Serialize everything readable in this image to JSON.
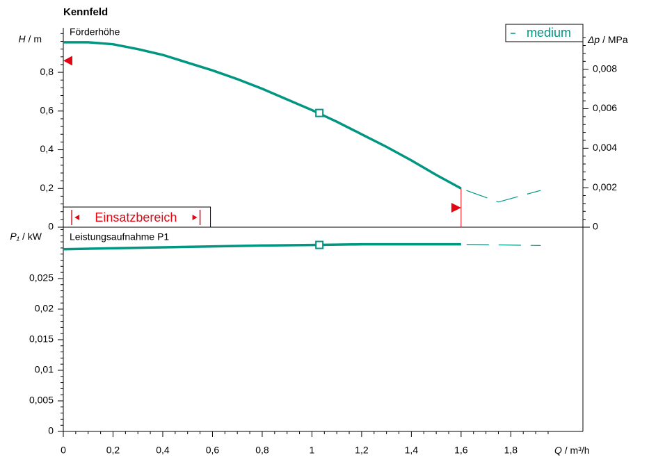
{
  "chart_data": [
    {
      "type": "line",
      "title": "Kennfeld",
      "label": "Förderhöhe",
      "y_label": {
        "symbol": "H",
        "unit": "/ m"
      },
      "y2_label": {
        "symbol": "Δp",
        "unit": "/ MPa"
      },
      "xlim": [
        0,
        2.09
      ],
      "ylim": [
        0,
        1.03
      ],
      "yticks": [
        0,
        {
          "value": 0.2,
          "label": "0,2"
        },
        {
          "value": 0.4,
          "label": "0,4"
        },
        {
          "value": 0.6,
          "label": "0,6"
        },
        {
          "value": 0.8,
          "label": "0,8"
        }
      ],
      "y2lim": [
        0,
        0.0101
      ],
      "y2ticks": [
        0,
        {
          "value": 0.002,
          "label": "0,002"
        },
        {
          "value": 0.004,
          "label": "0,004"
        },
        {
          "value": 0.006,
          "label": "0,006"
        },
        {
          "value": 0.008,
          "label": "0,008"
        }
      ],
      "legend": "upper right",
      "series": [
        {
          "name": "medium",
          "color": "#009682",
          "x": [
            0,
            0.1,
            0.2,
            0.3,
            0.4,
            0.5,
            0.6,
            0.7,
            0.8,
            0.9,
            1.0,
            1.1,
            1.2,
            1.3,
            1.4,
            1.5,
            1.6
          ],
          "values": [
            0.955,
            0.955,
            0.945,
            0.92,
            0.89,
            0.85,
            0.81,
            0.765,
            0.715,
            0.66,
            0.605,
            0.545,
            0.48,
            0.415,
            0.345,
            0.27,
            0.2
          ],
          "dashed_x": [
            1.6,
            1.75,
            1.92
          ],
          "dashed_values": [
            0.2,
            0.13,
            0.19
          ],
          "operating_point": {
            "x": 1.03,
            "y": 0.59
          }
        }
      ],
      "limit_color": "#e30613",
      "h_limit_marker": 0.86,
      "q_limit_marker": 1.6,
      "range_label": "Einsatzbereich",
      "range": [
        0.034,
        0.55
      ]
    },
    {
      "type": "line",
      "label": "Leistungsaufnahme P1",
      "y_label": {
        "symbol": "P₁",
        "unit": "/ kW"
      },
      "x_label": {
        "symbol": "Q",
        "unit": "/ m³/h"
      },
      "xlim": [
        0,
        2.09
      ],
      "xticks": [
        0,
        {
          "value": 0.2,
          "label": "0,2"
        },
        {
          "value": 0.4,
          "label": "0,4"
        },
        {
          "value": 0.6,
          "label": "0,6"
        },
        {
          "value": 0.8,
          "label": "0,8"
        },
        1,
        {
          "value": 1.2,
          "label": "1,2"
        },
        {
          "value": 1.4,
          "label": "1,4"
        },
        {
          "value": 1.6,
          "label": "1,6"
        },
        {
          "value": 1.8,
          "label": "1,8"
        }
      ],
      "ylim": [
        0,
        0.0334
      ],
      "yticks": [
        0,
        {
          "value": 0.005,
          "label": "0,005"
        },
        {
          "value": 0.01,
          "label": "0,01"
        },
        {
          "value": 0.015,
          "label": "0,015"
        },
        {
          "value": 0.02,
          "label": "0,02"
        },
        {
          "value": 0.025,
          "label": "0,025"
        }
      ],
      "series": [
        {
          "name": "medium",
          "color": "#009682",
          "x": [
            0,
            0.4,
            0.8,
            1.03,
            1.2,
            1.6
          ],
          "values": [
            0.0298,
            0.0301,
            0.0304,
            0.0305,
            0.0306,
            0.0306
          ],
          "dashed_x": [
            1.6,
            1.92
          ],
          "dashed_values": [
            0.0306,
            0.0304
          ],
          "operating_point": {
            "x": 1.03,
            "y": 0.0305
          }
        }
      ]
    }
  ]
}
